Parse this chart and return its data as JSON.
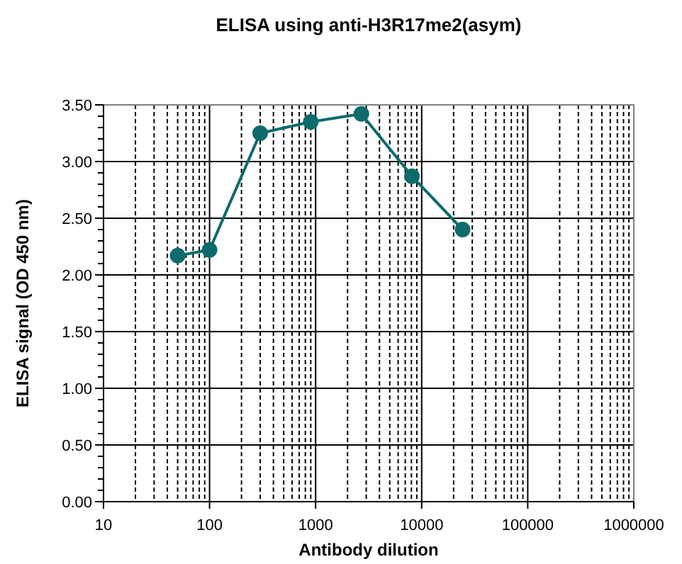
{
  "chart_data": {
    "type": "line",
    "title": "ELISA using anti-H3R17me2(asym)",
    "xlabel": "Antibody dilution",
    "ylabel": "ELISA signal (OD 450 nm)",
    "x": [
      50,
      100,
      300,
      900,
      2700,
      8100,
      24300
    ],
    "series": [
      {
        "color": "#0e6b6b",
        "values": [
          2.17,
          2.22,
          3.25,
          3.35,
          3.42,
          2.87,
          2.4
        ]
      }
    ],
    "log": "x",
    "xlim": [
      10,
      1000000
    ],
    "xticks": [
      10,
      {
        "value": 20,
        "label": null
      },
      {
        "value": 30,
        "label": null
      },
      {
        "value": 40,
        "label": null
      },
      {
        "value": 50,
        "label": null
      },
      {
        "value": 60,
        "label": null
      },
      {
        "value": 70,
        "label": null
      },
      {
        "value": 80,
        "label": null
      },
      {
        "value": 90,
        "label": null
      },
      100,
      {
        "value": 200,
        "label": null
      },
      {
        "value": 300,
        "label": null
      },
      {
        "value": 400,
        "label": null
      },
      {
        "value": 500,
        "label": null
      },
      {
        "value": 600,
        "label": null
      },
      {
        "value": 700,
        "label": null
      },
      {
        "value": 800,
        "label": null
      },
      {
        "value": 900,
        "label": null
      },
      1000,
      {
        "value": 2000,
        "label": null
      },
      {
        "value": 3000,
        "label": null
      },
      {
        "value": 4000,
        "label": null
      },
      {
        "value": 5000,
        "label": null
      },
      {
        "value": 6000,
        "label": null
      },
      {
        "value": 7000,
        "label": null
      },
      {
        "value": 8000,
        "label": null
      },
      {
        "value": 9000,
        "label": null
      },
      10000,
      {
        "value": 20000,
        "label": null
      },
      {
        "value": 30000,
        "label": null
      },
      {
        "value": 40000,
        "label": null
      },
      {
        "value": 50000,
        "label": null
      },
      {
        "value": 60000,
        "label": null
      },
      {
        "value": 70000,
        "label": null
      },
      {
        "value": 80000,
        "label": null
      },
      {
        "value": 90000,
        "label": null
      },
      100000,
      {
        "value": 200000,
        "label": null
      },
      {
        "value": 300000,
        "label": null
      },
      {
        "value": 400000,
        "label": null
      },
      {
        "value": 500000,
        "label": null
      },
      {
        "value": 600000,
        "label": null
      },
      {
        "value": 700000,
        "label": null
      },
      {
        "value": 800000,
        "label": null
      },
      {
        "value": 900000,
        "label": null
      },
      1000000
    ],
    "ylim": [
      0,
      3.5
    ],
    "yticks": [
      {
        "value": 0,
        "label": "0.00"
      },
      {
        "value": 0.5,
        "label": "0.50"
      },
      {
        "value": 1,
        "label": "1.00"
      },
      {
        "value": 1.5,
        "label": "1.50"
      },
      {
        "value": 2,
        "label": "2.00"
      },
      {
        "value": 2.5,
        "label": "2.50"
      },
      {
        "value": 3,
        "label": "3.00"
      },
      {
        "value": 3.5,
        "label": "3.50"
      }
    ],
    "grid": true,
    "marker": "circle",
    "line_style": "solid"
  }
}
